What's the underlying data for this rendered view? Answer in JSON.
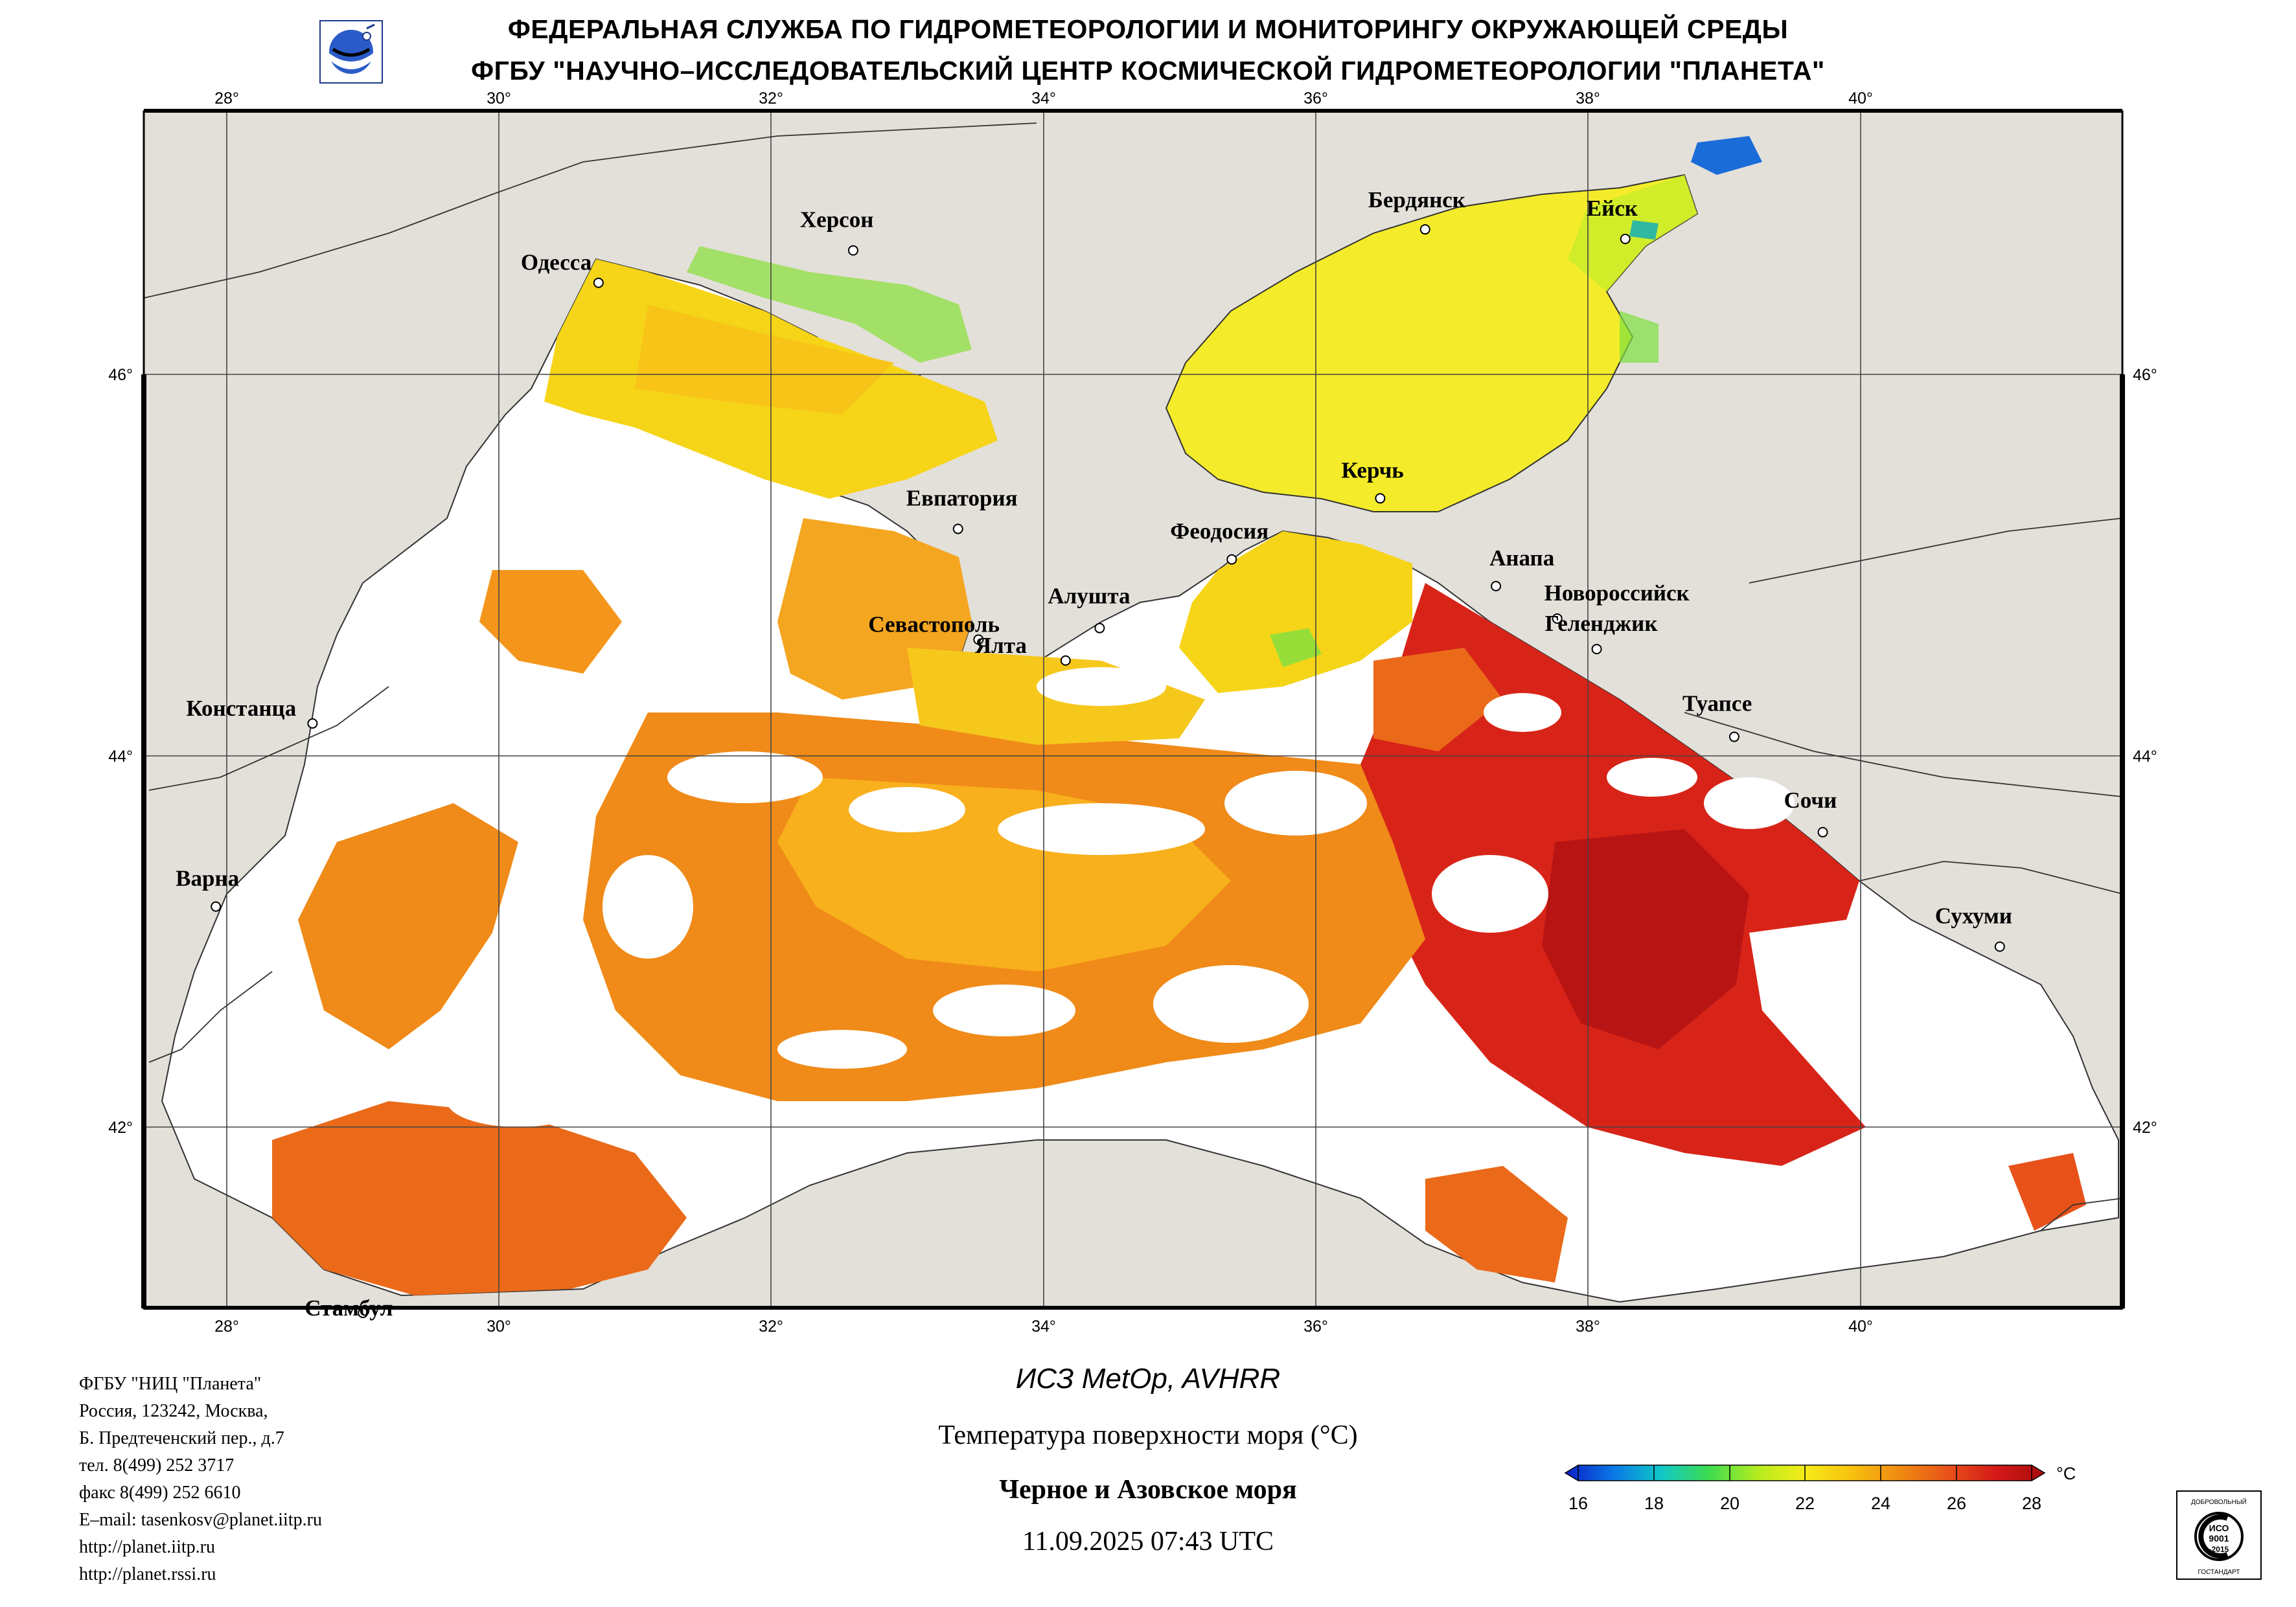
{
  "header": {
    "line1": "ФЕДЕРАЛЬНАЯ СЛУЖБА ПО ГИДРОМЕТЕОРОЛОГИИ И МОНИТОРИНГУ ОКРУЖАЮЩЕЙ СРЕДЫ",
    "line2": "ФГБУ \"НАУЧНО–ИССЛЕДОВАТЕЛЬСКИЙ ЦЕНТР КОСМИЧЕСКОЙ ГИДРОМЕТЕОРОЛОГИИ \"ПЛАНЕТА\"",
    "logo_icon": "planeta-globe-logo-icon"
  },
  "map": {
    "longitude_ticks": [
      "28°",
      "30°",
      "32°",
      "34°",
      "36°",
      "38°",
      "40°"
    ],
    "latitude_ticks": [
      "46°",
      "44°",
      "42°"
    ],
    "lon_range": [
      27.4,
      41.95
    ],
    "lat_range": [
      41.0,
      47.35
    ],
    "colors": {
      "land": "#e3e0da",
      "cloud": "#ffffff",
      "border": "#000000"
    },
    "cities": [
      {
        "name": "Одесса",
        "lon": 30.73,
        "lat": 46.48
      },
      {
        "name": "Херсон",
        "lon": 32.6,
        "lat": 46.65
      },
      {
        "name": "Бердянск",
        "lon": 36.8,
        "lat": 46.76
      },
      {
        "name": "Ейск",
        "lon": 38.27,
        "lat": 46.71
      },
      {
        "name": "Евпатория",
        "lon": 33.37,
        "lat": 45.19
      },
      {
        "name": "Керчь",
        "lon": 36.47,
        "lat": 45.35
      },
      {
        "name": "Феодосия",
        "lon": 35.38,
        "lat": 45.03
      },
      {
        "name": "Анапа",
        "lon": 37.32,
        "lat": 44.89
      },
      {
        "name": "Новороссийск",
        "lon": 37.77,
        "lat": 44.72
      },
      {
        "name": "Геленджик",
        "lon": 38.06,
        "lat": 44.56
      },
      {
        "name": "Севастополь",
        "lon": 33.52,
        "lat": 44.61
      },
      {
        "name": "Алушта",
        "lon": 34.41,
        "lat": 44.67
      },
      {
        "name": "Ялта",
        "lon": 34.16,
        "lat": 44.5
      },
      {
        "name": "Констанца",
        "lon": 28.63,
        "lat": 44.17
      },
      {
        "name": "Туапсе",
        "lon": 39.07,
        "lat": 44.1
      },
      {
        "name": "Сочи",
        "lon": 39.72,
        "lat": 43.6
      },
      {
        "name": "Варна",
        "lon": 27.92,
        "lat": 43.21
      },
      {
        "name": "Сухуми",
        "lon": 41.02,
        "lat": 43.0
      },
      {
        "name": "Стамбул",
        "lon": 29.0,
        "lat": 41.08
      }
    ]
  },
  "footer": {
    "org_lines": [
      "ФГБУ \"НИЦ \"Планета\"",
      "Россия, 123242, Москва,",
      "Б. Предтеченский пер., д.7",
      "тел. 8(499) 252 3717",
      "факс 8(499) 252 6610",
      "E–mail: tasenkosv@planet.iitp.ru",
      "http://planet.iitp.ru",
      "http://planet.rssi.ru"
    ],
    "satellite": "ИСЗ MetOp, AVHRR",
    "product": "Температура поверхности моря (°С)",
    "region": "Черное и Азовское моря",
    "datetime": "11.09.2025 07:43 UTC"
  },
  "colorbar": {
    "unit": "°С",
    "range": [
      16,
      28
    ],
    "tick_labels": [
      "16",
      "18",
      "20",
      "22",
      "24",
      "26",
      "28"
    ],
    "stops": [
      "#0a1fc8",
      "#0a78e6",
      "#10c8c8",
      "#3ddc50",
      "#b4ec20",
      "#f6ec18",
      "#f8c010",
      "#f08a12",
      "#e8521a",
      "#d41818",
      "#a80c0c"
    ]
  },
  "badge": {
    "icon": "iso-9001-certification-badge-icon",
    "top_text": "ДОБРОВОЛЬНЫЙ",
    "iso_label": "ИСО",
    "iso_number": "9001",
    "iso_year": "-2015",
    "bottom_text": "ГОСТАНДАРТ"
  }
}
